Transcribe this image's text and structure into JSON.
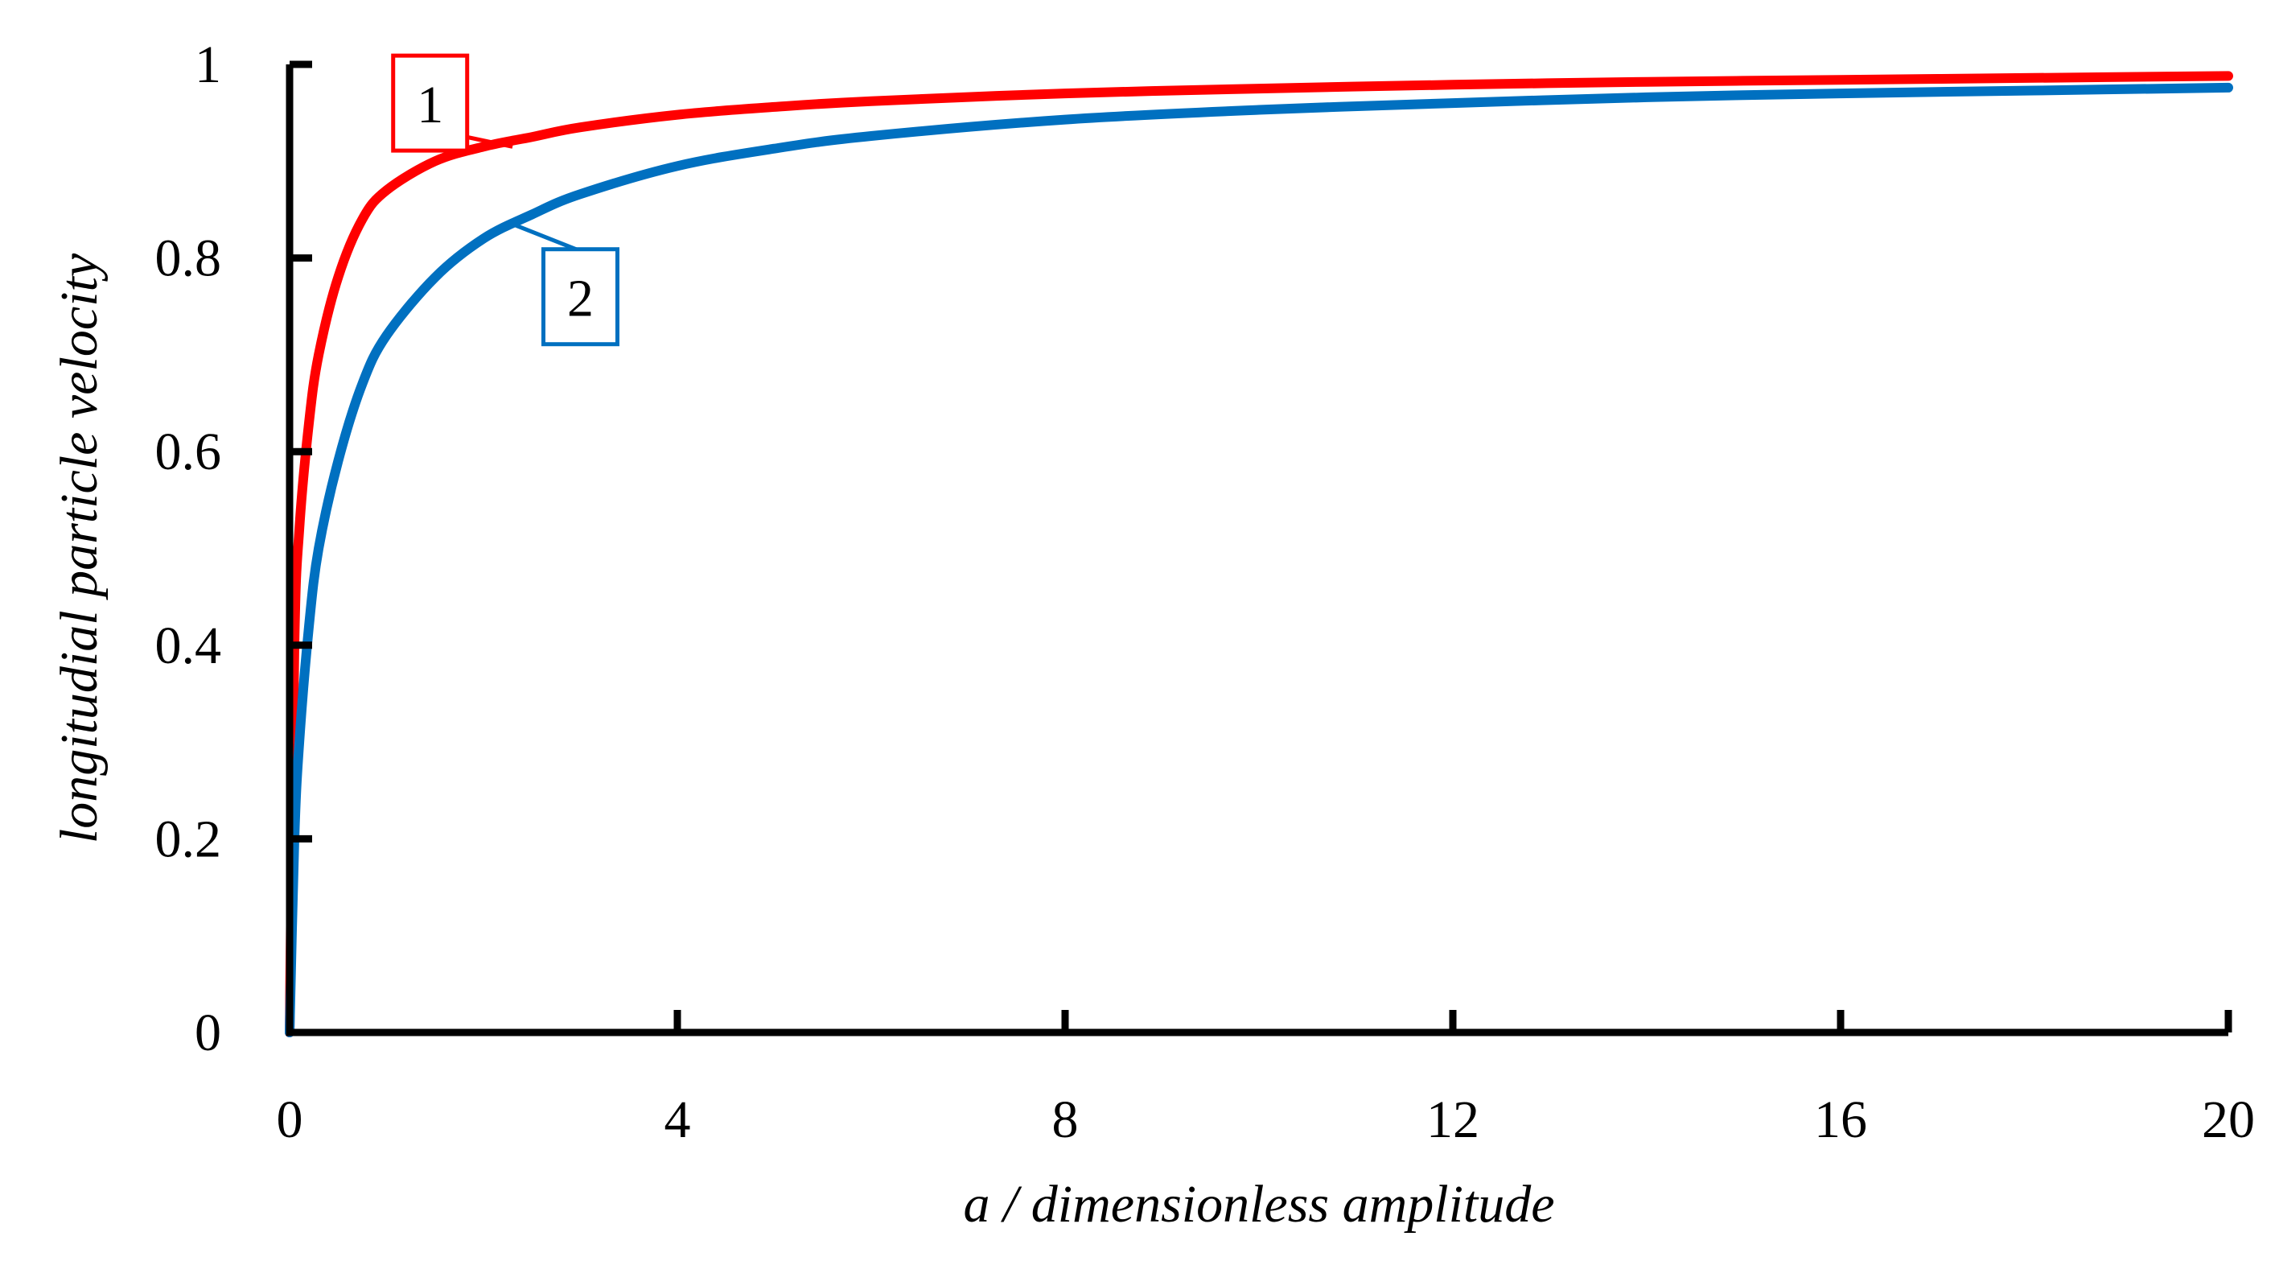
{
  "chart_data": {
    "type": "line",
    "title": "",
    "xlabel": "a / dimensionless amplitude",
    "ylabel": "longitudial particle velocity",
    "xlim": [
      0,
      20
    ],
    "ylim": [
      0,
      1
    ],
    "xticks": [
      0,
      4,
      8,
      12,
      16,
      20
    ],
    "yticks": [
      0,
      0.2,
      0.4,
      0.6,
      0.8,
      1
    ],
    "xtick_labels": [
      "0",
      "4",
      "8",
      "12",
      "16",
      "20"
    ],
    "ytick_labels": [
      "0",
      "0.2",
      "0.4",
      "0.6",
      "0.8",
      "1"
    ],
    "grid": false,
    "legend": "none",
    "series": [
      {
        "label": "1",
        "color": "#ff0000",
        "x": [
          0,
          0.05,
          0.1,
          0.2,
          0.3,
          0.5,
          0.75,
          1,
          1.5,
          2,
          2.5,
          3,
          4,
          5,
          6,
          8,
          10,
          12,
          14,
          16,
          18,
          20
        ],
        "y": [
          0,
          0.4,
          0.52,
          0.63,
          0.7,
          0.78,
          0.84,
          0.87,
          0.9,
          0.915,
          0.925,
          0.935,
          0.948,
          0.956,
          0.962,
          0.97,
          0.975,
          0.979,
          0.982,
          0.984,
          0.986,
          0.988
        ]
      },
      {
        "label": "2",
        "color": "#0070c0",
        "x": [
          0,
          0.05,
          0.1,
          0.2,
          0.3,
          0.5,
          0.75,
          1,
          1.5,
          2,
          2.5,
          3,
          4,
          5,
          6,
          8,
          10,
          12,
          14,
          16,
          18,
          20
        ],
        "y": [
          0,
          0.2,
          0.3,
          0.42,
          0.5,
          0.59,
          0.67,
          0.72,
          0.78,
          0.82,
          0.845,
          0.866,
          0.895,
          0.913,
          0.926,
          0.943,
          0.953,
          0.96,
          0.966,
          0.97,
          0.973,
          0.976
        ]
      }
    ],
    "callouts": [
      {
        "text": "1",
        "series": 0,
        "point": [
          2.3,
          0.915
        ],
        "box": [
          1.45,
          0.96
        ]
      },
      {
        "text": "2",
        "series": 1,
        "point": [
          2.3,
          0.835
        ],
        "box": [
          3.0,
          0.76
        ]
      }
    ]
  }
}
